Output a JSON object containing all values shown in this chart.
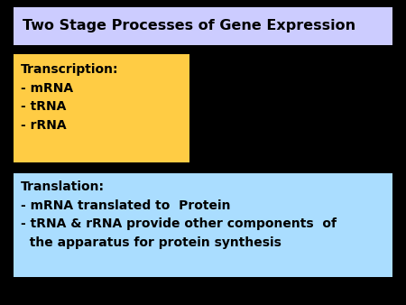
{
  "title": "Two Stage Processes of Gene Expression",
  "title_box_color": "#ccccff",
  "background_color": "#000000",
  "transcription_box_color": "#ffcc44",
  "transcription_text": "Transcription:\n- mRNA\n- tRNA\n- rRNA",
  "translation_box_color": "#aaddff",
  "translation_text": "Translation:\n- mRNA translated to  Protein\n- tRNA & rRNA provide other components  of\n  the apparatus for protein synthesis",
  "text_color": "#000000",
  "title_fontsize": 11.5,
  "body_fontsize": 10,
  "fig_width": 4.5,
  "fig_height": 3.38,
  "dpi": 100
}
